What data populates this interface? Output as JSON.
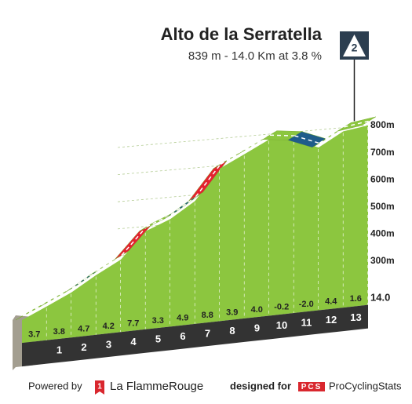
{
  "chart_data": {
    "type": "profile",
    "title": "Alto de la Serratella",
    "subtitle": "839 m - 14.0 Km at 3.8 %",
    "category": "2",
    "categories": [
      "1",
      "2",
      "3",
      "4",
      "5",
      "6",
      "7",
      "8",
      "9",
      "10",
      "11",
      "12",
      "13",
      "14.0"
    ],
    "values": [
      3.7,
      3.8,
      4.7,
      4.2,
      7.7,
      3.3,
      4.9,
      8.8,
      3.9,
      4.0,
      -0.2,
      -2.0,
      4.4,
      1.6
    ],
    "value_labels": [
      "3.7",
      "3.8",
      "4.7",
      "4.2",
      "7.7",
      "3.3",
      "4.9",
      "8.8",
      "3.9",
      "4.0",
      "-0.2",
      "-2.0",
      "4.4",
      "1.6"
    ],
    "colors": [
      "#8cc63f",
      "#8cc63f",
      "#1f5c8a",
      "#8cc63f",
      "#e3222f",
      "#8cc63f",
      "#1f5c8a",
      "#e3222f",
      "#8cc63f",
      "#8cc63f",
      "#8cc63f",
      "#1f5c8a",
      "#8cc63f",
      "#8cc63f"
    ],
    "start_elevation": 311,
    "ylim": [
      300,
      800
    ],
    "yticks": [
      {
        "value": 300,
        "label": "300m"
      },
      {
        "value": 400,
        "label": "400m"
      },
      {
        "value": 500,
        "label": "500m"
      },
      {
        "value": 600,
        "label": "600m"
      },
      {
        "value": 700,
        "label": "700m"
      },
      {
        "value": 800,
        "label": "800m"
      }
    ]
  },
  "footer": {
    "powered_by": "Powered by",
    "brand_icon": "1",
    "brand": "La FlammeRouge",
    "designed_for": "designed for",
    "pcs_logo": "PCS",
    "pcs": "ProCyclingStats"
  }
}
